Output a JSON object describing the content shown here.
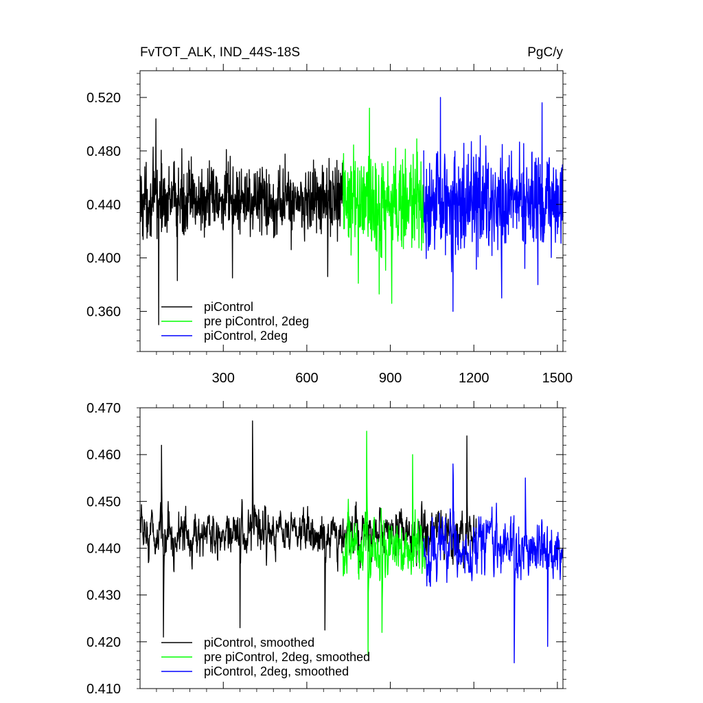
{
  "chart_data": [
    {
      "type": "line",
      "title": "FvTOT_ALK, IND_44S-18S",
      "units_label": "PgC/y",
      "xlim": [
        1,
        1520
      ],
      "ylim": [
        0.33,
        0.54
      ],
      "x_ticks": [
        300,
        600,
        900,
        1200,
        1500
      ],
      "x_tick_labels": [
        "300",
        "600",
        "900",
        "1200",
        "1500"
      ],
      "y_ticks": [
        0.36,
        0.4,
        0.44,
        0.48,
        0.52
      ],
      "y_tick_labels": [
        "0.360",
        "0.400",
        "0.440",
        "0.480",
        "0.520"
      ],
      "legend_position": "bottom-left",
      "series": [
        {
          "name": "piControl",
          "color": "#000000",
          "x_start": 1,
          "x_end": 730,
          "mean": 0.443,
          "spread": 0.018,
          "extremes": [
            [
              68,
              0.35
            ],
            [
              58,
              0.504
            ],
            [
              135,
              0.383
            ],
            [
              333,
              0.385
            ],
            [
              675,
              0.386
            ]
          ]
        },
        {
          "name": "pre piControl, 2deg",
          "color": "#00ff00",
          "x_start": 730,
          "x_end": 1020,
          "mean": 0.44,
          "spread": 0.025,
          "extremes": [
            [
              825,
              0.512
            ],
            [
              860,
              0.373
            ],
            [
              905,
              0.366
            ],
            [
              785,
              0.381
            ]
          ]
        },
        {
          "name": "piControl, 2deg",
          "color": "#0000ff",
          "x_start": 1020,
          "x_end": 1520,
          "mean": 0.441,
          "spread": 0.025,
          "extremes": [
            [
              1125,
              0.36
            ],
            [
              1080,
              0.52
            ],
            [
              1445,
              0.516
            ],
            [
              1300,
              0.37
            ],
            [
              1430,
              0.38
            ]
          ]
        }
      ]
    },
    {
      "type": "line",
      "xlim": [
        1,
        1520
      ],
      "ylim": [
        0.41,
        0.47
      ],
      "x_ticks": [
        300,
        600,
        900,
        1200,
        1500
      ],
      "y_ticks": [
        0.41,
        0.42,
        0.43,
        0.44,
        0.45,
        0.46,
        0.47
      ],
      "y_tick_labels": [
        "0.410",
        "0.420",
        "0.430",
        "0.440",
        "0.450",
        "0.460",
        "0.470"
      ],
      "legend_position": "bottom-left",
      "series": [
        {
          "name": "piControl, smoothed",
          "color": "#000000",
          "x_start": 1,
          "x_end": 1210,
          "mean": 0.443,
          "spread": 0.006,
          "extremes": [
            [
              405,
              0.4672
            ],
            [
              85,
              0.421
            ],
            [
              78,
              0.462
            ],
            [
              360,
              0.423
            ],
            [
              665,
              0.4225
            ],
            [
              1175,
              0.464
            ]
          ]
        },
        {
          "name": "pre piControl, 2deg, smoothed",
          "color": "#00ff00",
          "x_start": 730,
          "x_end": 1025,
          "mean": 0.44,
          "spread": 0.008,
          "extremes": [
            [
              815,
              0.465
            ],
            [
              820,
              0.417
            ],
            [
              870,
              0.422
            ],
            [
              980,
              0.46
            ]
          ]
        },
        {
          "name": "piControl, 2deg, smoothed",
          "color": "#0000ff",
          "x_start": 1020,
          "x_end": 1520,
          "mean": 0.44,
          "spread": 0.008,
          "extremes": [
            [
              1345,
              0.4155
            ],
            [
              1465,
              0.419
            ],
            [
              1385,
              0.455
            ],
            [
              1125,
              0.458
            ]
          ]
        }
      ]
    }
  ]
}
